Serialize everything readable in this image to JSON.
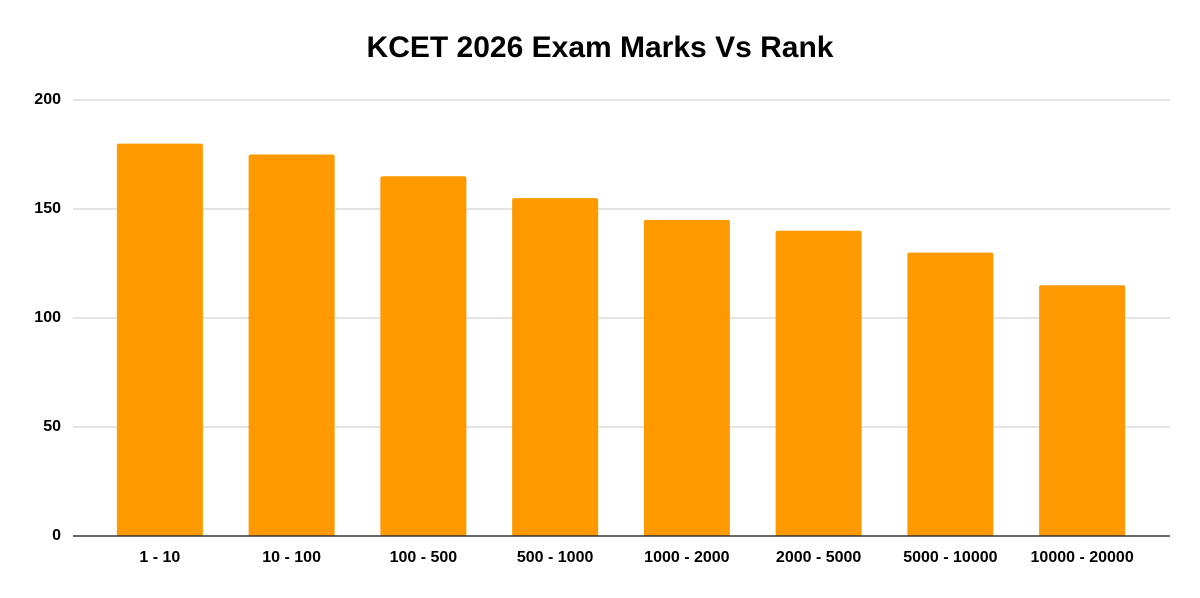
{
  "chart_data": {
    "type": "bar",
    "title": "KCET 2026 Exam Marks Vs Rank",
    "categories": [
      "1 - 10",
      "10 - 100",
      "100 - 500",
      "500 - 1000",
      "1000 - 2000",
      "2000 - 5000",
      "5000 - 10000",
      "10000 - 20000"
    ],
    "values": [
      180,
      175,
      165,
      155,
      145,
      140,
      130,
      115
    ],
    "color": "#ff9900",
    "ylim": [
      0,
      200
    ],
    "yticks": [
      0,
      50,
      100,
      150,
      200
    ],
    "grid": true
  }
}
